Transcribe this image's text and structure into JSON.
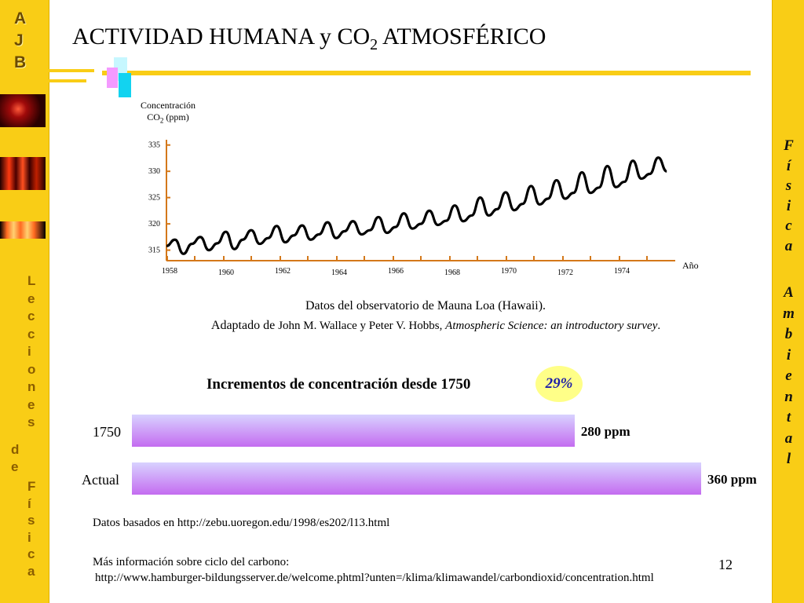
{
  "sidebar_left": {
    "ajb": [
      "A",
      "J",
      "B"
    ],
    "lecciones": [
      "L",
      "e",
      "c",
      "c",
      "i",
      "o",
      "n",
      "e",
      "s"
    ],
    "de": [
      "d",
      "e"
    ],
    "fisica": [
      "F",
      "í",
      "s",
      "i",
      "c",
      "a"
    ]
  },
  "sidebar_right": {
    "fisica": [
      "F",
      "í",
      "s",
      "i",
      "c",
      "a"
    ],
    "ambiental": [
      "A",
      "m",
      "b",
      "i",
      "e",
      "n",
      "t",
      "a",
      "l"
    ]
  },
  "colors": {
    "accent_yellow": "#f9cd16",
    "curve": "#000000",
    "axis": "#d4781a",
    "bar_gradient_top": "#d8d2ff",
    "bar_gradient_bottom": "#c46cf0",
    "badge": "#ffff88",
    "badge_text": "#1d1da8"
  },
  "title": {
    "main": "ACTIVIDAD HUMANA y CO",
    "sub": "2",
    "tail": " ATMOSFÉRICO"
  },
  "chart_data": [
    {
      "type": "line",
      "ylabel_line1": "Concentración",
      "ylabel_co": "CO",
      "ylabel_sub": "2",
      "ylabel_unit": " (ppm)",
      "xlabel": "Año",
      "yticks": [
        315,
        320,
        325,
        330,
        335
      ],
      "xticks": [
        "1958",
        "1960",
        "1962",
        "1964",
        "1966",
        "1968",
        "1970",
        "1972",
        "1974"
      ],
      "ylim": [
        313,
        336
      ],
      "xlim": [
        1958,
        1976
      ],
      "grid": false,
      "series": [
        {
          "x": [
            1958.0,
            1958.3,
            1958.6,
            1958.9,
            1959.2,
            1959.5,
            1959.8,
            1960.1,
            1960.4,
            1960.7,
            1961.0,
            1961.3,
            1961.6,
            1961.9,
            1962.2,
            1962.5,
            1962.8,
            1963.1,
            1963.4,
            1963.7,
            1964.0,
            1964.3,
            1964.6,
            1964.9,
            1965.2,
            1965.5,
            1965.8,
            1966.1,
            1966.4,
            1966.7,
            1967.0,
            1967.3,
            1967.6,
            1967.9,
            1968.2,
            1968.5,
            1968.8,
            1969.1,
            1969.4,
            1969.7,
            1970.0,
            1970.3,
            1970.6,
            1970.9,
            1971.2,
            1971.5,
            1971.8,
            1972.1,
            1972.4,
            1972.7,
            1973.0,
            1973.3,
            1973.6,
            1973.9,
            1974.2,
            1974.5,
            1974.8,
            1975.1,
            1975.4,
            1975.7
          ],
          "values": [
            315.8,
            317.0,
            314.3,
            316.2,
            317.5,
            315.0,
            316.3,
            318.5,
            315.2,
            317.0,
            318.8,
            316.2,
            317.3,
            319.6,
            316.5,
            317.8,
            319.7,
            317.0,
            318.0,
            320.3,
            317.3,
            318.6,
            320.5,
            318.0,
            318.8,
            321.3,
            318.3,
            319.4,
            322.0,
            319.1,
            320.0,
            322.5,
            319.8,
            320.6,
            323.5,
            320.5,
            321.6,
            325.0,
            321.6,
            322.8,
            326.0,
            322.6,
            323.8,
            327.2,
            323.7,
            324.8,
            328.3,
            324.8,
            325.9,
            329.8,
            325.9,
            326.9,
            331.0,
            327.0,
            328.0,
            332.0,
            328.6,
            329.5,
            332.6,
            330.0
          ]
        }
      ]
    },
    {
      "type": "bar",
      "title": "Incrementos de concentración desde 1750",
      "categories": [
        "1750",
        "Actual"
      ],
      "values": [
        280,
        360
      ],
      "value_labels": [
        "280 ppm",
        "360 ppm"
      ],
      "annotation": "29%"
    }
  ],
  "source": {
    "line1": "Datos del observatorio de Mauna Loa (Hawaii).",
    "adapted": "Adaptado de ",
    "authors": "John M. Wallace y Peter V. Hobbs, ",
    "book": "Atmospheric Science: an introductory survey",
    "dot": "."
  },
  "footer": {
    "data_based": "Datos basados en  http://zebu.uoregon.edu/1998/es202/l13.html",
    "more_info": "Más información sobre ciclo del carbono:",
    "url2": "http://www.hamburger-bildungsserver.de/welcome.phtml?unten=/klima/klimawandel/carbondioxid/concentration.html",
    "page": "12"
  }
}
